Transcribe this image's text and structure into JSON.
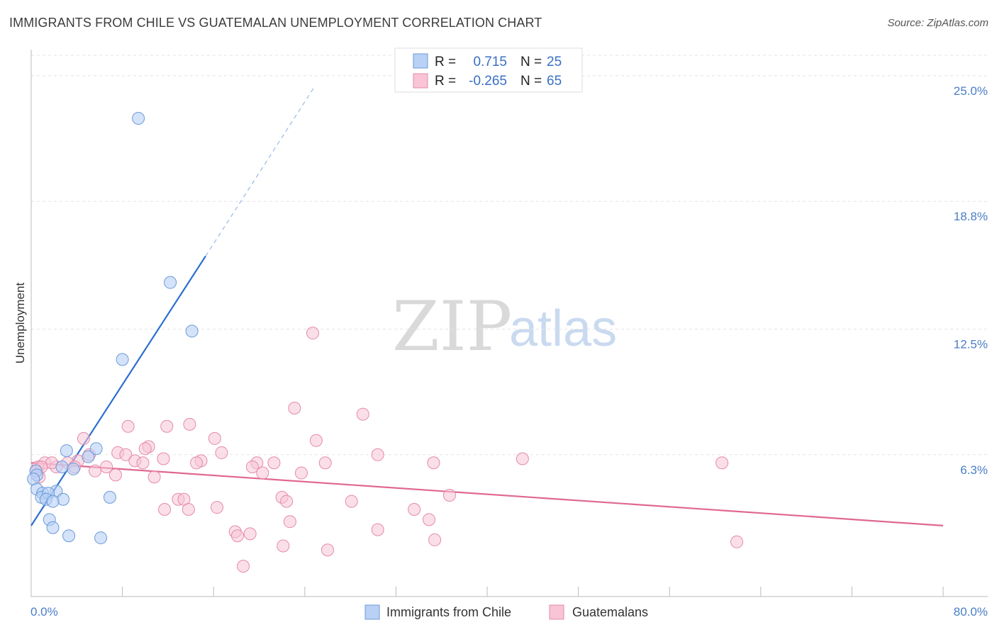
{
  "header": {
    "title": "IMMIGRANTS FROM CHILE VS GUATEMALAN UNEMPLOYMENT CORRELATION CHART",
    "source": "Source: ZipAtlas.com"
  },
  "watermark": {
    "zip": "ZIP",
    "atlas": "atlas"
  },
  "legend": {
    "rows": [
      {
        "r_label": "R = ",
        "r_value": "0.715",
        "n_label": "N = ",
        "n_value": "25"
      },
      {
        "r_label": "R = ",
        "r_value": "-0.265",
        "n_label": "N = ",
        "n_value": "65"
      }
    ]
  },
  "bottom_legend": {
    "items": [
      {
        "label": "Immigrants from Chile"
      },
      {
        "label": "Guatemalans"
      }
    ]
  },
  "chart_data": {
    "type": "scatter",
    "xlabel": "",
    "ylabel": "Unemployment",
    "xlim": [
      0,
      80
    ],
    "ylim": [
      0,
      26.5
    ],
    "x_tick_labels": [
      "0.0%",
      "80.0%"
    ],
    "y_ticks": [
      6.3,
      12.5,
      18.8,
      25.0
    ],
    "y_tick_labels": [
      "6.3%",
      "12.5%",
      "18.8%",
      "25.0%"
    ],
    "grid": true,
    "legend_position": "top-center",
    "colors": {
      "chile_fill": "#b8d1f5",
      "chile_stroke": "#6b9ad8",
      "chile_line": "#2b6fcf",
      "guat_fill": "#f8c4d6",
      "guat_stroke": "#e48aaa",
      "guat_line": "#e0688f",
      "tick_text": "#4a7ec8"
    },
    "series": [
      {
        "name": "Immigrants from Chile",
        "points": [
          [
            9.4,
            22.9
          ],
          [
            12.2,
            14.8
          ],
          [
            14.1,
            12.4
          ],
          [
            8.0,
            11.0
          ],
          [
            3.1,
            6.5
          ],
          [
            5.7,
            6.6
          ],
          [
            5.0,
            6.2
          ],
          [
            2.7,
            5.7
          ],
          [
            3.7,
            5.6
          ],
          [
            0.4,
            5.5
          ],
          [
            0.5,
            5.3
          ],
          [
            0.2,
            5.1
          ],
          [
            0.5,
            4.6
          ],
          [
            1.0,
            4.4
          ],
          [
            2.2,
            4.5
          ],
          [
            0.9,
            4.2
          ],
          [
            1.5,
            4.4
          ],
          [
            1.3,
            4.1
          ],
          [
            2.8,
            4.1
          ],
          [
            1.9,
            4.0
          ],
          [
            6.9,
            4.2
          ],
          [
            1.6,
            3.1
          ],
          [
            1.9,
            2.7
          ],
          [
            3.3,
            2.3
          ],
          [
            6.1,
            2.2
          ]
        ],
        "trend": {
          "x": [
            0,
            15.3
          ],
          "y": [
            2.8,
            16.1
          ],
          "dashed_to": [
            24.9,
            24.5
          ]
        }
      },
      {
        "name": "Guatemalans",
        "points": [
          [
            24.7,
            12.3
          ],
          [
            23.1,
            8.6
          ],
          [
            29.1,
            8.3
          ],
          [
            8.5,
            7.7
          ],
          [
            11.9,
            7.7
          ],
          [
            13.9,
            7.8
          ],
          [
            16.1,
            7.1
          ],
          [
            4.6,
            7.1
          ],
          [
            25.0,
            7.0
          ],
          [
            10.3,
            6.7
          ],
          [
            10.0,
            6.6
          ],
          [
            16.7,
            6.4
          ],
          [
            7.6,
            6.4
          ],
          [
            8.3,
            6.3
          ],
          [
            5.1,
            6.3
          ],
          [
            4.1,
            6.0
          ],
          [
            11.6,
            6.1
          ],
          [
            14.9,
            6.0
          ],
          [
            9.1,
            6.0
          ],
          [
            9.8,
            5.9
          ],
          [
            14.5,
            5.9
          ],
          [
            1.2,
            5.9
          ],
          [
            3.2,
            5.9
          ],
          [
            19.8,
            5.9
          ],
          [
            21.3,
            5.9
          ],
          [
            25.8,
            5.9
          ],
          [
            30.4,
            6.3
          ],
          [
            35.3,
            5.9
          ],
          [
            43.1,
            6.1
          ],
          [
            60.6,
            5.9
          ],
          [
            3.8,
            5.7
          ],
          [
            2.2,
            5.7
          ],
          [
            6.6,
            5.7
          ],
          [
            5.6,
            5.5
          ],
          [
            19.4,
            5.7
          ],
          [
            0.6,
            5.7
          ],
          [
            20.3,
            5.4
          ],
          [
            23.7,
            5.4
          ],
          [
            7.4,
            5.3
          ],
          [
            10.8,
            5.2
          ],
          [
            0.7,
            5.2
          ],
          [
            0.5,
            5.5
          ],
          [
            12.9,
            4.1
          ],
          [
            13.4,
            4.1
          ],
          [
            22.0,
            4.2
          ],
          [
            22.4,
            4.0
          ],
          [
            28.1,
            4.0
          ],
          [
            36.7,
            4.3
          ],
          [
            16.3,
            3.7
          ],
          [
            11.7,
            3.6
          ],
          [
            33.6,
            3.6
          ],
          [
            34.9,
            3.1
          ],
          [
            22.7,
            3.0
          ],
          [
            30.4,
            2.6
          ],
          [
            17.9,
            2.5
          ],
          [
            18.1,
            2.3
          ],
          [
            19.2,
            2.4
          ],
          [
            35.4,
            2.1
          ],
          [
            22.1,
            1.8
          ],
          [
            26.0,
            1.6
          ],
          [
            61.9,
            2.0
          ],
          [
            18.6,
            0.8
          ],
          [
            13.8,
            3.6
          ],
          [
            1.8,
            5.9
          ],
          [
            0.9,
            5.7
          ]
        ],
        "trend": {
          "x": [
            0,
            80
          ],
          "y": [
            5.9,
            2.8
          ]
        }
      }
    ]
  }
}
